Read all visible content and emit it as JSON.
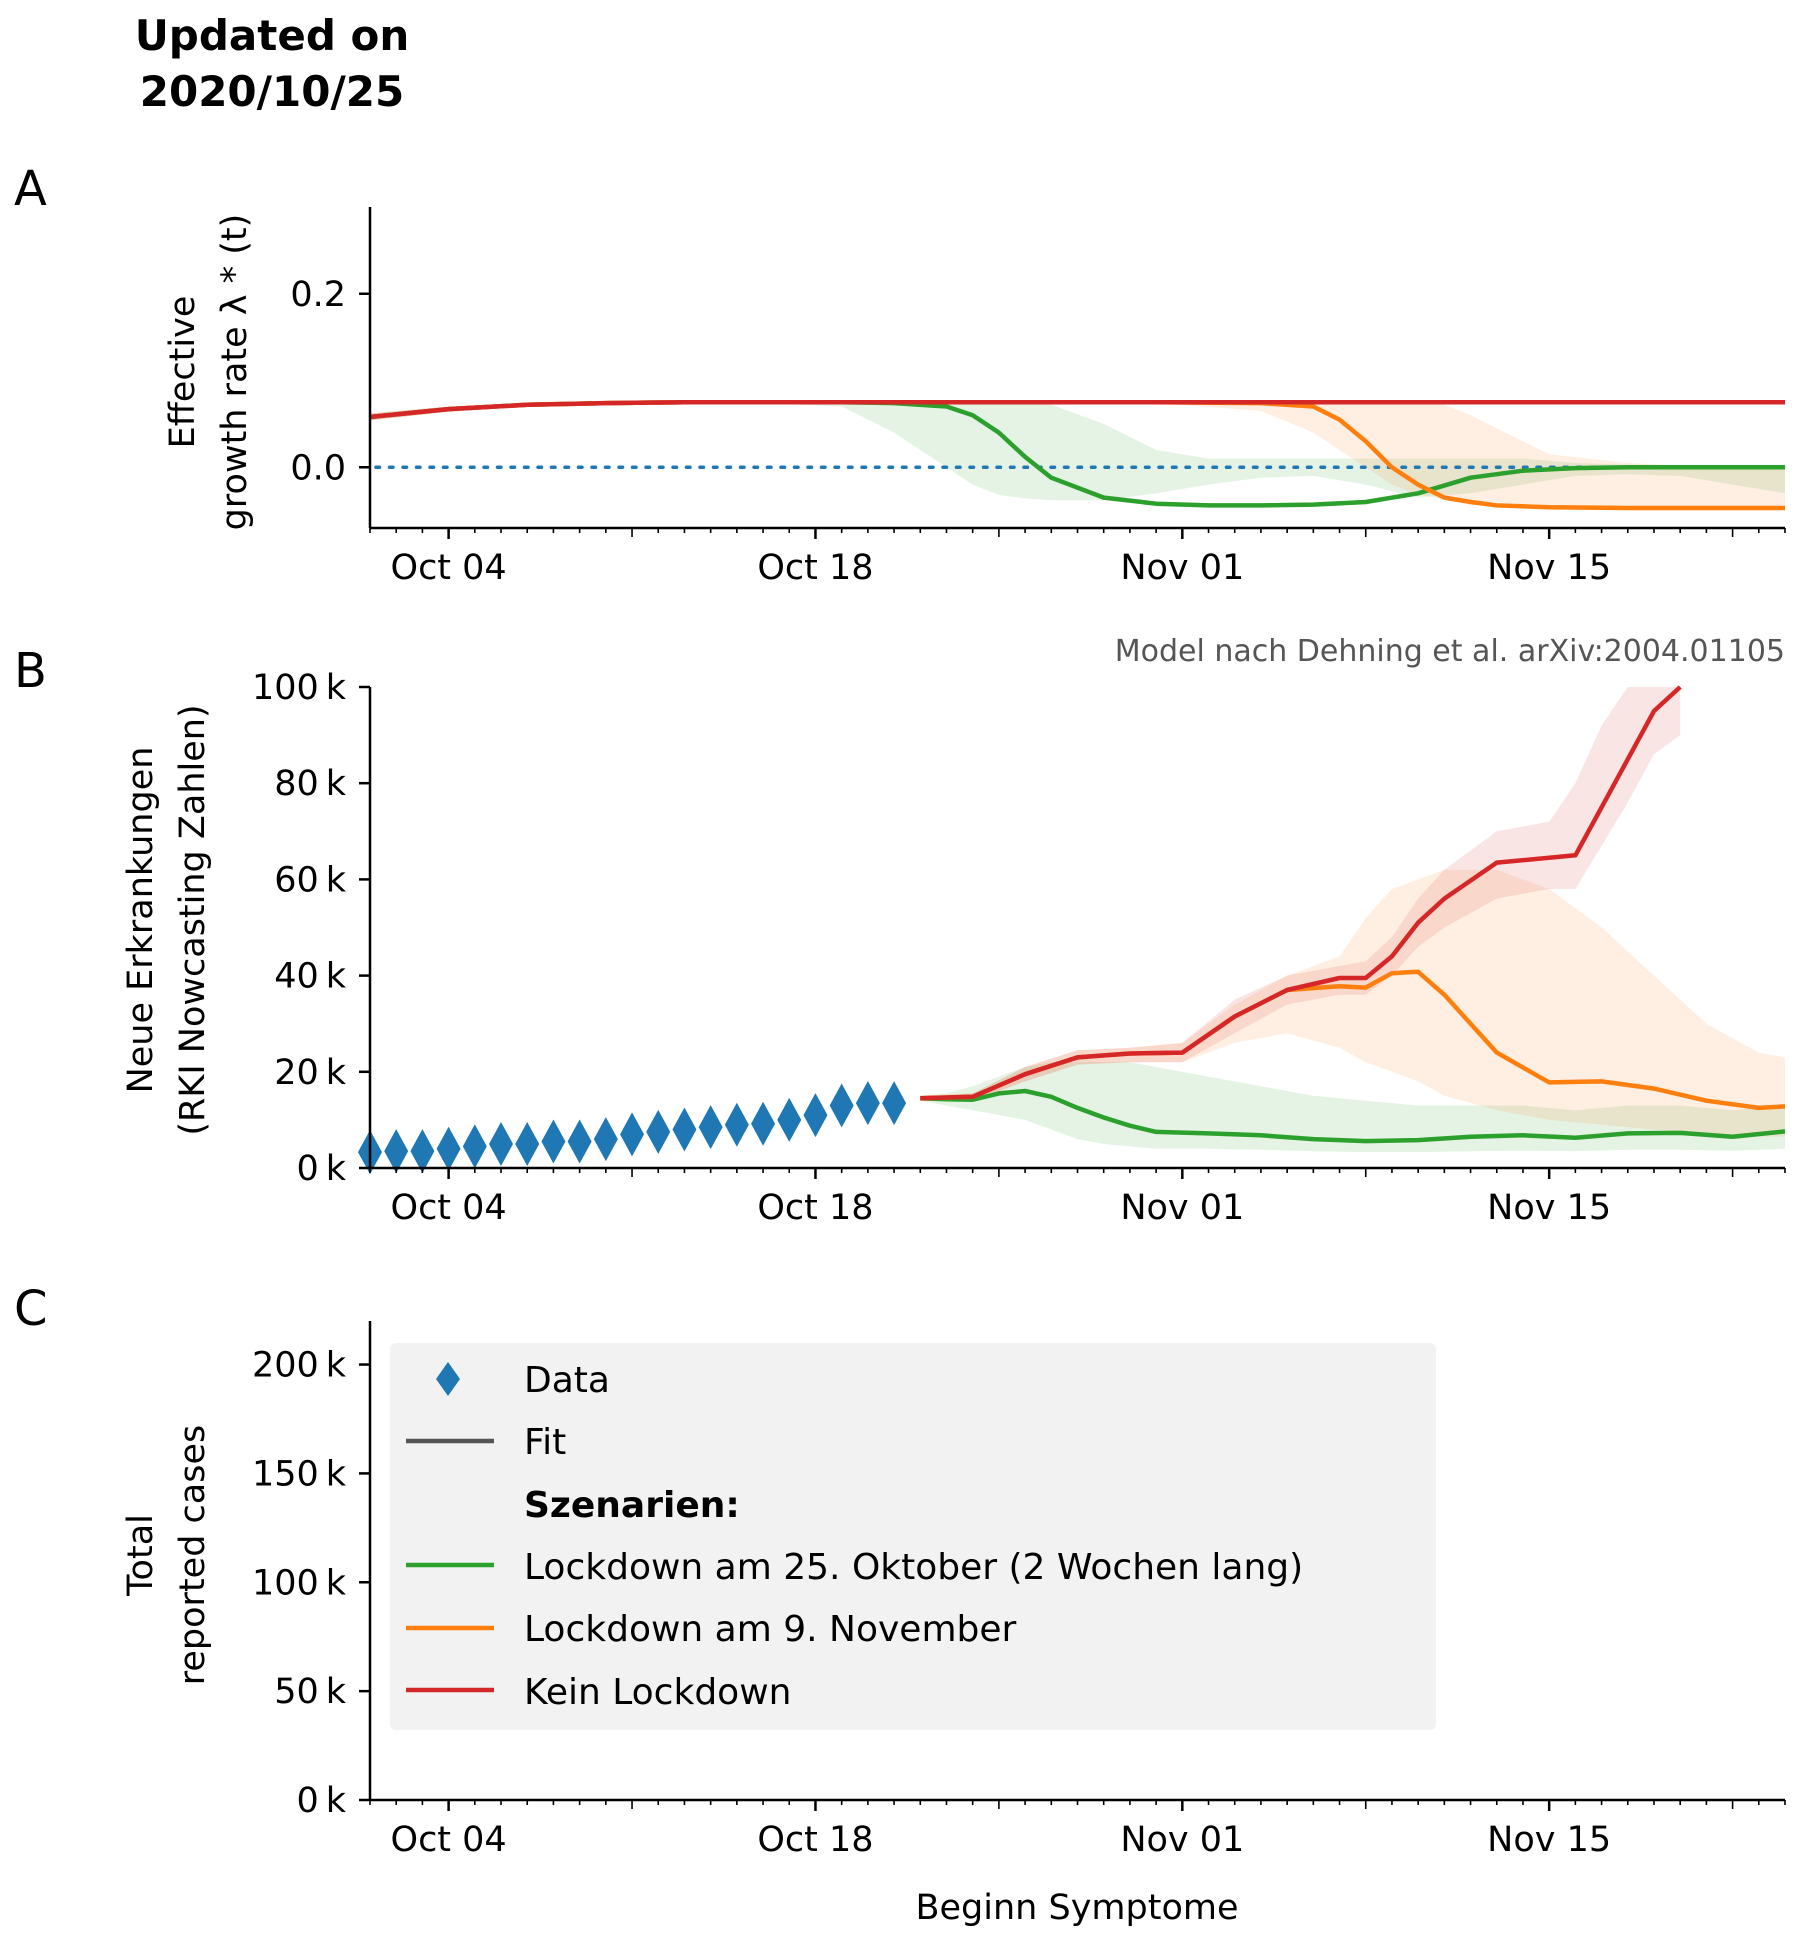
{
  "header": {
    "title_line1": "Updated on",
    "title_line2": "2020/10/25"
  },
  "panel_labels": [
    "A",
    "B",
    "C"
  ],
  "colors": {
    "data": "#1f77b4",
    "fit": "#555555",
    "green": "#2ca02c",
    "orange": "#ff7f0e",
    "red": "#d62728",
    "legend_bg": "#f2f2f2"
  },
  "credit": "Model nach Dehning et al. arXiv:2004.01105",
  "x_ticks": [
    "Oct 04",
    "Oct 18",
    "Nov 01",
    "Nov 15"
  ],
  "x_tick_days": [
    3,
    17,
    31,
    45
  ],
  "x_range_days": [
    0,
    54
  ],
  "x_origin_date": "2020-10-01",
  "xlabel": "Beginn Symptome",
  "chart_data": [
    {
      "id": "A",
      "type": "line",
      "ylabel_line1": "Effective",
      "ylabel_line2": "growth rate λ * (t)",
      "ylim": [
        -0.07,
        0.3
      ],
      "yticks": [
        0.0,
        0.2
      ],
      "ytick_labels": [
        "0.0",
        "0.2"
      ],
      "reference_line": {
        "y": 0.0,
        "style": "dotted"
      },
      "series": [
        {
          "key": "green",
          "x": [
            0,
            3,
            6,
            9,
            12,
            15,
            18,
            20,
            22,
            23,
            24,
            25,
            26,
            28,
            30,
            32,
            34,
            36,
            38,
            40,
            42,
            44,
            46,
            48,
            50,
            52,
            54
          ],
          "y": [
            0.058,
            0.067,
            0.072,
            0.074,
            0.075,
            0.075,
            0.075,
            0.074,
            0.07,
            0.06,
            0.04,
            0.012,
            -0.012,
            -0.035,
            -0.042,
            -0.044,
            -0.044,
            -0.043,
            -0.04,
            -0.03,
            -0.012,
            -0.004,
            -0.001,
            0.0,
            0.0,
            0.0,
            0.0
          ],
          "band_lo": [
            0.054,
            0.064,
            0.07,
            0.072,
            0.073,
            0.074,
            0.07,
            0.04,
            0.0,
            -0.02,
            -0.032,
            -0.036,
            -0.038,
            -0.038,
            -0.03,
            -0.02,
            -0.012,
            -0.01,
            -0.02,
            -0.035,
            -0.03,
            -0.02,
            -0.01,
            -0.008,
            -0.01,
            -0.02,
            -0.03
          ],
          "band_hi": [
            0.062,
            0.07,
            0.074,
            0.076,
            0.077,
            0.077,
            0.077,
            0.077,
            0.077,
            0.077,
            0.076,
            0.075,
            0.072,
            0.05,
            0.02,
            0.01,
            0.01,
            0.01,
            0.01,
            0.01,
            0.01,
            0.01,
            0.005,
            0.003,
            0.003,
            0.003,
            0.003
          ]
        },
        {
          "key": "orange",
          "x": [
            0,
            3,
            6,
            9,
            12,
            20,
            30,
            34,
            36,
            37,
            38,
            39,
            40,
            41,
            42,
            43,
            44,
            45,
            48,
            51,
            54
          ],
          "y": [
            0.058,
            0.067,
            0.072,
            0.074,
            0.075,
            0.075,
            0.075,
            0.074,
            0.07,
            0.055,
            0.03,
            0.0,
            -0.02,
            -0.035,
            -0.04,
            -0.044,
            -0.045,
            -0.046,
            -0.047,
            -0.047,
            -0.047
          ],
          "band_lo": [
            0.054,
            0.064,
            0.07,
            0.072,
            0.073,
            0.074,
            0.074,
            0.065,
            0.04,
            0.02,
            0.0,
            -0.02,
            -0.032,
            -0.036,
            -0.038,
            -0.04,
            -0.042,
            -0.044,
            -0.046,
            -0.046,
            -0.046
          ],
          "band_hi": [
            0.062,
            0.07,
            0.074,
            0.076,
            0.077,
            0.077,
            0.077,
            0.077,
            0.077,
            0.077,
            0.077,
            0.077,
            0.077,
            0.072,
            0.06,
            0.045,
            0.03,
            0.015,
            0.005,
            0.0,
            0.0
          ]
        },
        {
          "key": "red",
          "x": [
            0,
            3,
            6,
            9,
            12,
            15,
            20,
            30,
            40,
            50,
            54
          ],
          "y": [
            0.058,
            0.067,
            0.072,
            0.074,
            0.075,
            0.075,
            0.075,
            0.075,
            0.075,
            0.075,
            0.075
          ],
          "band_lo": [
            0.054,
            0.064,
            0.07,
            0.072,
            0.073,
            0.074,
            0.074,
            0.074,
            0.074,
            0.074,
            0.074
          ],
          "band_hi": [
            0.062,
            0.07,
            0.074,
            0.076,
            0.077,
            0.076,
            0.076,
            0.076,
            0.076,
            0.076,
            0.076
          ]
        }
      ]
    },
    {
      "id": "B",
      "type": "line",
      "ylabel_line1": "Neue Erkrankungen",
      "ylabel_line2": "(RKI Nowcasting Zahlen)",
      "ylim": [
        0,
        100000
      ],
      "yticks": [
        0,
        20000,
        40000,
        60000,
        80000,
        100000
      ],
      "ytick_labels": [
        "0 k",
        "20 k",
        "40 k",
        "60 k",
        "80 k",
        "100 k"
      ],
      "data_points": {
        "x": [
          0,
          1,
          2,
          3,
          4,
          5,
          6,
          7,
          8,
          9,
          10,
          11,
          12,
          13,
          14,
          15,
          16,
          17,
          18,
          19,
          20
        ],
        "y": [
          3300,
          3500,
          3500,
          4000,
          4500,
          5000,
          5000,
          5500,
          5500,
          6000,
          7000,
          7500,
          8000,
          8500,
          9000,
          9200,
          10000,
          11000,
          13000,
          13500,
          13500
        ]
      },
      "series": [
        {
          "key": "green",
          "x": [
            21,
            22,
            23,
            24,
            25,
            26,
            27,
            28,
            29,
            30,
            32,
            34,
            36,
            38,
            40,
            42,
            44,
            46,
            48,
            50,
            52,
            54
          ],
          "y": [
            14500,
            14300,
            14200,
            15500,
            16000,
            14800,
            12500,
            10500,
            8800,
            7500,
            7200,
            6800,
            6000,
            5600,
            5800,
            6500,
            6800,
            6300,
            7200,
            7300,
            6500,
            7600
          ],
          "band_lo": [
            14000,
            13000,
            12000,
            11000,
            10000,
            8000,
            6000,
            5000,
            4500,
            4000,
            4000,
            3800,
            3500,
            3300,
            3300,
            3500,
            3600,
            3500,
            3800,
            3800,
            3600,
            4000
          ],
          "band_hi": [
            15000,
            15500,
            17000,
            19000,
            21000,
            22000,
            22000,
            22000,
            22000,
            21000,
            19000,
            17000,
            15000,
            14000,
            13000,
            13000,
            13000,
            12000,
            13000,
            13000,
            12000,
            13000
          ]
        },
        {
          "key": "orange",
          "x": [
            21,
            23,
            25,
            27,
            29,
            31,
            33,
            35,
            37,
            38,
            39,
            40,
            41,
            43,
            45,
            47,
            49,
            51,
            53,
            54
          ],
          "y": [
            14500,
            14800,
            19500,
            23000,
            23800,
            24000,
            31500,
            37000,
            37800,
            37500,
            40500,
            40800,
            36000,
            24000,
            17800,
            18000,
            16500,
            14000,
            12500,
            12800
          ],
          "band_lo": [
            14000,
            14000,
            18000,
            21500,
            22000,
            22000,
            26000,
            28000,
            25000,
            22000,
            20000,
            18000,
            15000,
            12000,
            10000,
            9000,
            8000,
            7000,
            6500,
            6500
          ],
          "band_hi": [
            15000,
            15500,
            21000,
            24500,
            25000,
            26000,
            34000,
            40000,
            44000,
            52000,
            58000,
            60000,
            62000,
            62000,
            58000,
            50000,
            40000,
            30000,
            24000,
            23000
          ]
        },
        {
          "key": "red",
          "x": [
            21,
            23,
            25,
            27,
            29,
            31,
            33,
            35,
            37,
            38,
            39,
            40,
            41,
            43,
            45,
            46,
            47,
            48,
            49,
            50
          ],
          "y": [
            14500,
            14800,
            19500,
            23000,
            23800,
            24000,
            31500,
            37000,
            39500,
            39500,
            44000,
            51000,
            56000,
            63500,
            64500,
            65000,
            75000,
            85000,
            95000,
            100000
          ],
          "band_lo": [
            14000,
            14000,
            18000,
            21500,
            22000,
            22000,
            28000,
            34000,
            36000,
            36000,
            40000,
            46000,
            50000,
            56000,
            58000,
            58000,
            67000,
            76000,
            86000,
            90000
          ],
          "band_hi": [
            15000,
            15500,
            21000,
            24500,
            25000,
            26000,
            35000,
            40000,
            42000,
            43000,
            48000,
            56000,
            62000,
            70000,
            72000,
            80000,
            92000,
            100000,
            100000,
            100000
          ]
        }
      ]
    },
    {
      "id": "C",
      "type": "line",
      "ylabel_line1": "Total",
      "ylabel_line2": "reported cases",
      "ylim": [
        0,
        220000
      ],
      "yticks": [
        0,
        50000,
        100000,
        150000,
        200000
      ],
      "ytick_labels": [
        "0 k",
        "50 k",
        "100 k",
        "150 k",
        "200 k"
      ],
      "series": []
    }
  ],
  "legend": {
    "placement": "upper-left",
    "data_label": "Data",
    "fit_label": "Fit",
    "scenarios_label": "Szenarien:",
    "items": [
      {
        "label": "Lockdown am 25. Oktober (2 Wochen lang)",
        "color": "#2ca02c"
      },
      {
        "label": "Lockdown am 9. November",
        "color": "#ff7f0e"
      },
      {
        "label": "Kein Lockdown",
        "color": "#d62728"
      }
    ]
  }
}
